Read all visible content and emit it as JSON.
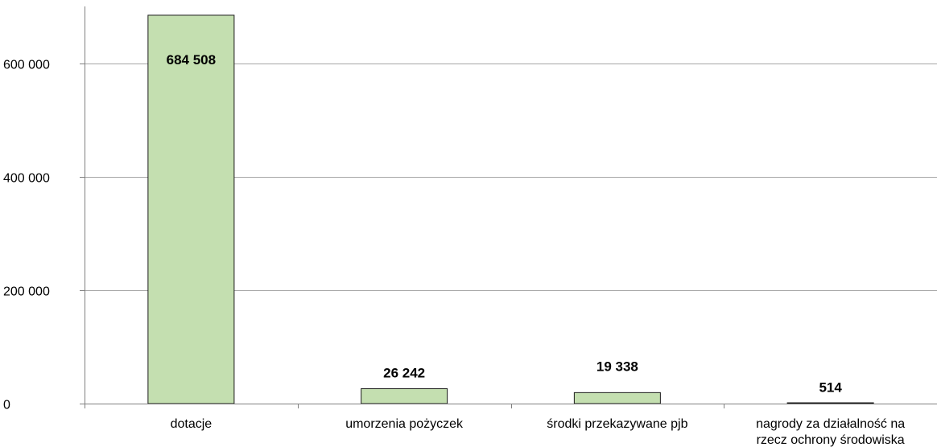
{
  "colors": {
    "bar_fill": "#c4dfb0",
    "bar_stroke": "#1a1a1a",
    "grid": "#a6a6a6",
    "axis": "#808080"
  },
  "chart_data": {
    "type": "bar",
    "title": "",
    "xlabel": "",
    "ylabel": "",
    "ylim": [
      0,
      700000
    ],
    "yticks": [
      0,
      200000,
      400000,
      600000
    ],
    "ytick_labels": [
      "0",
      "200 000",
      "400 000",
      "600 000"
    ],
    "grid": true,
    "legend": "none",
    "categories": [
      [
        "dotacje"
      ],
      [
        "umorzenia pożyczek"
      ],
      [
        "środki przekazywane pjb"
      ],
      [
        "nagrody za działalność na",
        "rzecz ochrony środowiska"
      ]
    ],
    "values": [
      684508,
      26242,
      19338,
      514
    ],
    "data_labels": [
      "684 508",
      "26 242",
      "19 338",
      "514"
    ]
  }
}
